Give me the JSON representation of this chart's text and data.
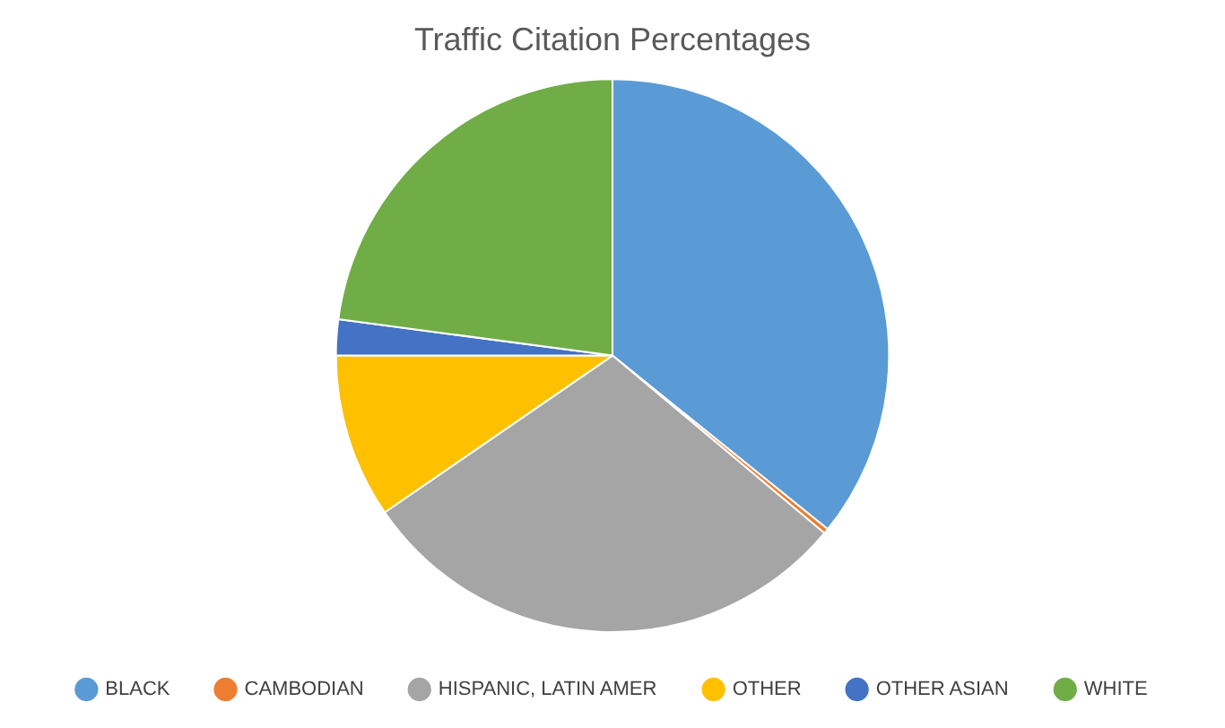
{
  "chart_data": {
    "type": "pie",
    "title": "Traffic Citation Percentages",
    "categories": [
      "BLACK",
      "CAMBODIAN",
      "HISPANIC, LATIN AMER",
      "OTHER",
      "OTHER ASIAN",
      "WHITE"
    ],
    "values": [
      35.8,
      0.3,
      29.3,
      9.6,
      2.1,
      22.9
    ],
    "colors": [
      "#5b9bd5",
      "#ed7d31",
      "#a5a5a5",
      "#ffc000",
      "#4472c4",
      "#70ad47"
    ],
    "legend": "bottom"
  }
}
